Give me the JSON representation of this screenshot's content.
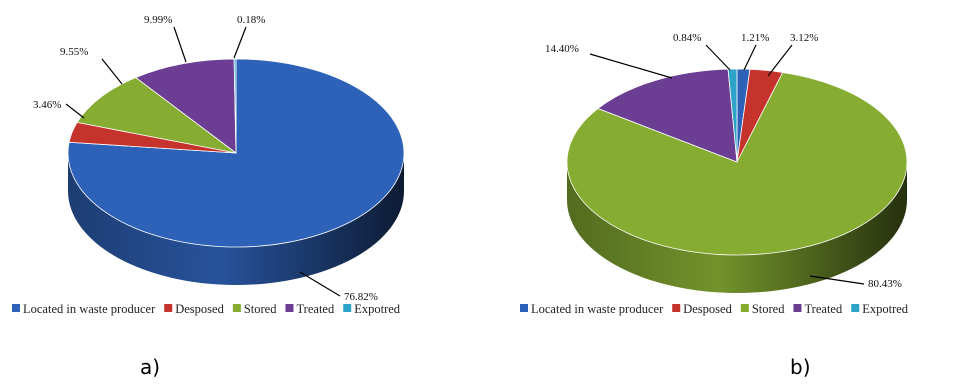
{
  "chart_data": [
    {
      "type": "pie",
      "style": "3d",
      "caption": "a)",
      "categories": [
        "Located in waste producer",
        "Desposed",
        "Stored",
        "Treated",
        "Expotred"
      ],
      "values": [
        76.82,
        3.46,
        9.55,
        9.99,
        0.18
      ],
      "value_labels": [
        "76.82%",
        "3.46%",
        "9.55%",
        "9.99%",
        "0.18%"
      ],
      "colors": [
        "#2e62b8",
        "#c6332c",
        "#86ad32",
        "#6b3d93",
        "#2ea3c9"
      ],
      "legend_position": "bottom"
    },
    {
      "type": "pie",
      "style": "3d",
      "caption": "b)",
      "categories": [
        "Located in waste producer",
        "Desposed",
        "Stored",
        "Treated",
        "Expotred"
      ],
      "values": [
        1.21,
        3.12,
        80.43,
        14.4,
        0.84
      ],
      "value_labels": [
        "1.21%",
        "3.12%",
        "80.43%",
        "14.40%",
        "0.84%"
      ],
      "colors": [
        "#2e62b8",
        "#c6332c",
        "#86ad32",
        "#6b3d93",
        "#2ea3c9"
      ],
      "legend_position": "bottom"
    }
  ]
}
